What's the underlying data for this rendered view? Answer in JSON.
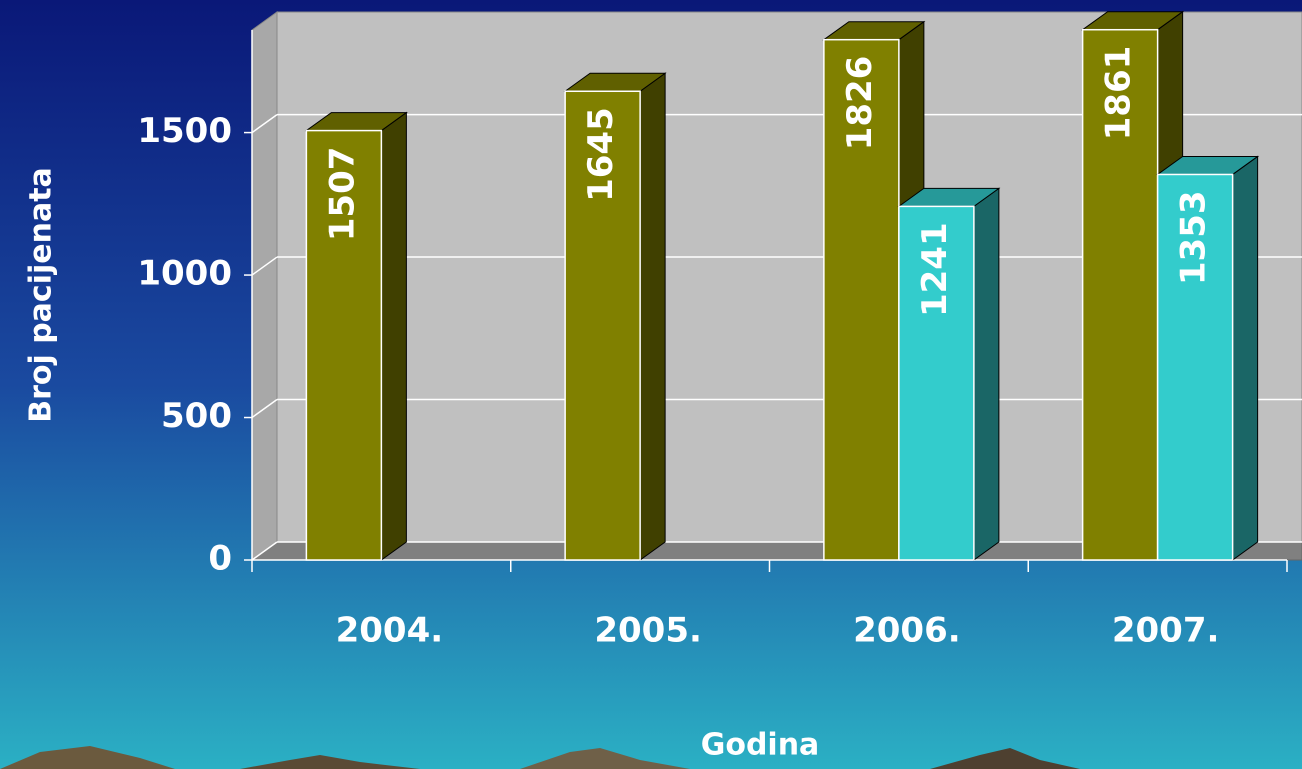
{
  "chart_data": {
    "type": "bar3d",
    "categories": [
      "2004.",
      "2005.",
      "2006.",
      "2007."
    ],
    "series": [
      {
        "color": "#808000",
        "values": [
          1507,
          1645,
          1826,
          1861
        ]
      },
      {
        "color": "#33cccc",
        "values": [
          null,
          null,
          1241,
          1353
        ]
      }
    ],
    "ylim": [
      0,
      1860
    ],
    "yticks": [
      0,
      500,
      1000,
      1500
    ],
    "grid": true,
    "x_label": "Godina",
    "y_label": "Broj pacijenata"
  }
}
